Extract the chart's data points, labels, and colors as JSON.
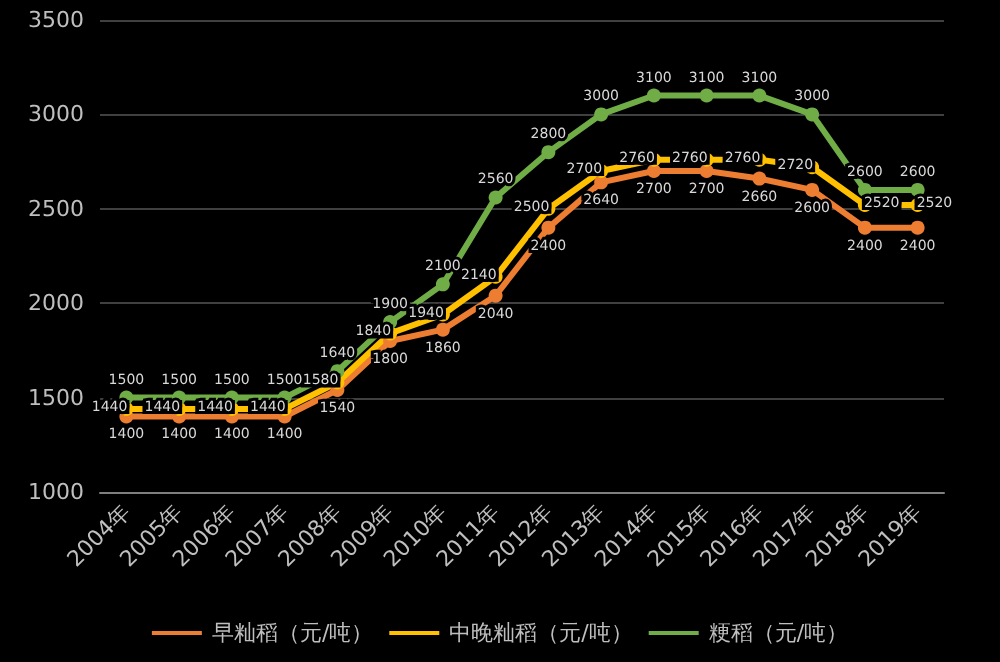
{
  "chart_data": {
    "type": "line",
    "categories": [
      "2004年",
      "2005年",
      "2006年",
      "2007年",
      "2008年",
      "2009年",
      "2010年",
      "2011年",
      "2012年",
      "2013年",
      "2014年",
      "2015年",
      "2016年",
      "2017年",
      "2018年",
      "2019年"
    ],
    "series": [
      {
        "name": "早籼稻（元/吨）",
        "color": "#ed7d31",
        "values": [
          1400,
          1400,
          1400,
          1400,
          1540,
          1800,
          1860,
          2040,
          2400,
          2640,
          2700,
          2700,
          2660,
          2600,
          2400,
          2400
        ]
      },
      {
        "name": "中晚籼稻（元/吨）",
        "color": "#ffc000",
        "values": [
          1440,
          1440,
          1440,
          1440,
          1580,
          1840,
          1940,
          2140,
          2500,
          2700,
          2760,
          2760,
          2760,
          2720,
          2520,
          2520
        ]
      },
      {
        "name": "粳稻（元/吨）",
        "color": "#70ad47",
        "values": [
          1500,
          1500,
          1500,
          1500,
          1640,
          1900,
          2100,
          2560,
          2800,
          3000,
          3100,
          3100,
          3100,
          3000,
          2600,
          2600
        ]
      }
    ],
    "ylim": [
      1000,
      3500
    ],
    "yticks": [
      1000,
      1500,
      2000,
      2500,
      3000,
      3500
    ],
    "grid": "y",
    "legend": "bottom",
    "marker": "circle",
    "line_style": "solid",
    "data_labels": true
  }
}
